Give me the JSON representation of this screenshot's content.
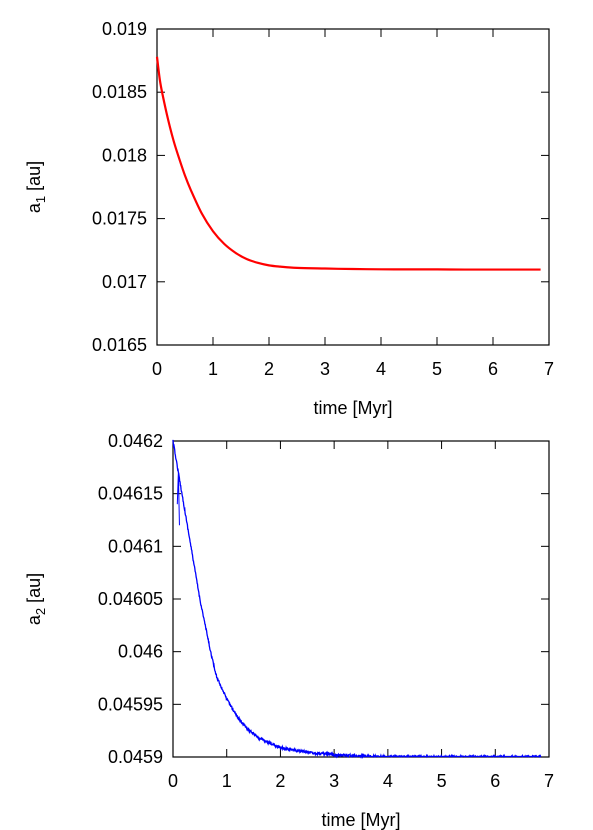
{
  "chart_data": [
    {
      "type": "line",
      "xlabel": "time [Myr]",
      "ylabel": "a",
      "ylabel_sub": "1",
      "ylabel_unit": " [au]",
      "xlim": [
        0,
        7
      ],
      "ylim": [
        0.0165,
        0.019
      ],
      "xticks": [
        "0",
        "1",
        "2",
        "3",
        "4",
        "5",
        "6",
        "7"
      ],
      "yticks": [
        "0.0165",
        "0.017",
        "0.0175",
        "0.018",
        "0.0185",
        "0.019"
      ],
      "ytick_values": [
        0.0165,
        0.017,
        0.0175,
        0.018,
        0.0185,
        0.019
      ],
      "grid": false,
      "series": [
        {
          "color": "#ff0000",
          "x": [
            0,
            0.05,
            0.1,
            0.2,
            0.3,
            0.4,
            0.5,
            0.6,
            0.8,
            1.0,
            1.2,
            1.4,
            1.6,
            1.8,
            2.0,
            2.2,
            2.5,
            3.0,
            3.5,
            4.0,
            4.5,
            5.0,
            5.5,
            6.0,
            6.5,
            6.85
          ],
          "y": [
            0.01878,
            0.0186,
            0.01848,
            0.01828,
            0.01811,
            0.01797,
            0.01784,
            0.01773,
            0.01754,
            0.0174,
            0.0173,
            0.01723,
            0.01718,
            0.01715,
            0.01713,
            0.01712,
            0.01711,
            0.017105,
            0.017101,
            0.017099,
            0.017098,
            0.017098,
            0.017097,
            0.017097,
            0.017097,
            0.017097
          ]
        }
      ]
    },
    {
      "type": "line",
      "xlabel": "time [Myr]",
      "ylabel": "a",
      "ylabel_sub": "2",
      "ylabel_unit": " [au]",
      "xlim": [
        0,
        7
      ],
      "ylim": [
        0.0459,
        0.0462
      ],
      "xticks": [
        "0",
        "1",
        "2",
        "3",
        "4",
        "5",
        "6",
        "7"
      ],
      "yticks": [
        "0.0459",
        "0.04595",
        "0.046",
        "0.04605",
        "0.0461",
        "0.04615",
        "0.0462"
      ],
      "ytick_values": [
        0.0459,
        0.04595,
        0.046,
        0.04605,
        0.0461,
        0.04615,
        0.0462
      ],
      "grid": false,
      "series": [
        {
          "color": "#0000ff",
          "x": [
            0,
            0.1,
            0.2,
            0.3,
            0.4,
            0.5,
            0.6,
            0.7,
            0.8,
            1.0,
            1.2,
            1.4,
            1.6,
            1.8,
            2.0,
            2.3,
            2.6,
            3.0,
            3.5,
            4.0,
            4.5,
            5.0,
            5.5,
            6.0,
            6.5,
            6.85
          ],
          "y": [
            0.0462,
            0.04617,
            0.04614,
            0.04611,
            0.04608,
            0.04605,
            0.046025,
            0.046,
            0.045978,
            0.045955,
            0.045938,
            0.045926,
            0.045918,
            0.045913,
            0.045909,
            0.045906,
            0.045904,
            0.045902,
            0.045901,
            0.0459,
            0.0459,
            0.0459,
            0.0459,
            0.0459,
            0.0459,
            0.0459
          ]
        }
      ]
    }
  ]
}
